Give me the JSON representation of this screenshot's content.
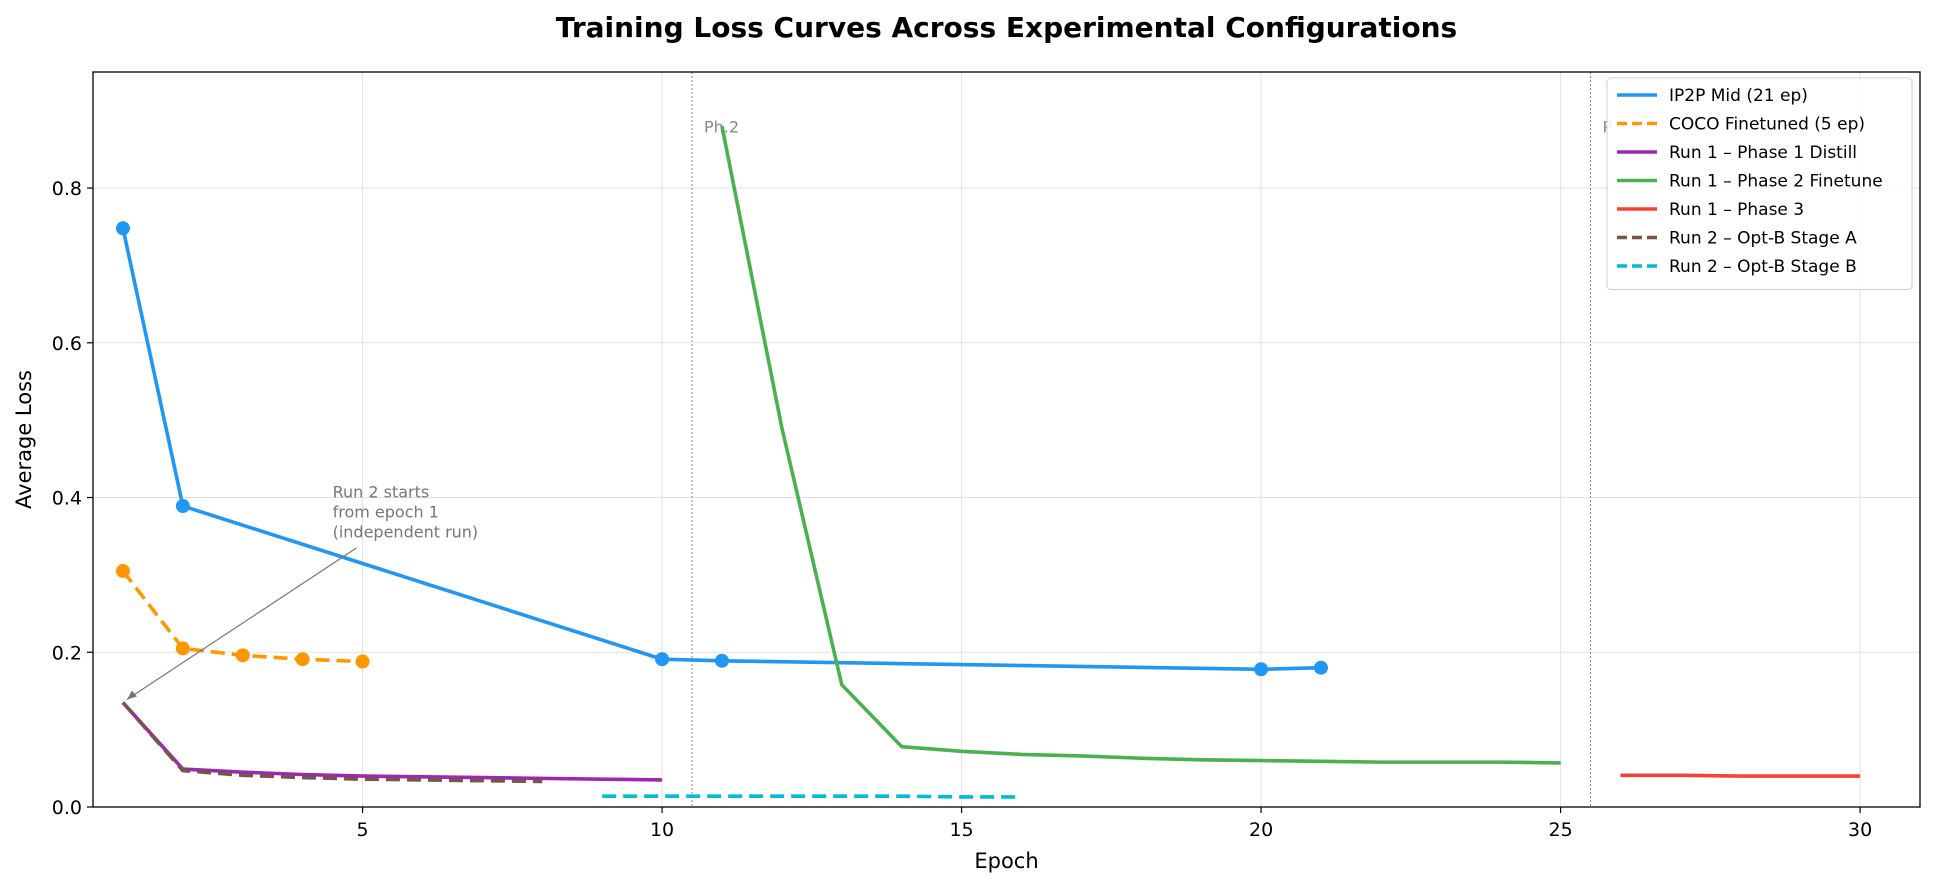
{
  "chart_data": {
    "type": "line",
    "title": "Training Loss Curves Across Experimental Configurations",
    "xlabel": "Epoch",
    "ylabel": "Average Loss",
    "xlim": [
      0.5,
      31
    ],
    "ylim": [
      0,
      0.95
    ],
    "xticks": [
      5,
      10,
      15,
      20,
      25,
      30
    ],
    "yticks": [
      0.0,
      0.2,
      0.4,
      0.6,
      0.8
    ],
    "xtick_labels": [
      "5",
      "10",
      "15",
      "20",
      "25",
      "30"
    ],
    "ytick_labels": [
      "0.0",
      "0.2",
      "0.4",
      "0.6",
      "0.8"
    ],
    "grid": true,
    "legend_position": "top-right",
    "series": [
      {
        "name": "IP2P Mid (21 ep)",
        "color": "#2196F3",
        "dash": "solid",
        "markers": true,
        "x": [
          1,
          2,
          10,
          11,
          20,
          21
        ],
        "y": [
          0.748,
          0.389,
          0.191,
          0.189,
          0.178,
          0.18
        ]
      },
      {
        "name": "COCO Finetuned (5 ep)",
        "color": "#FF9800",
        "dash": "dashed",
        "markers": true,
        "x": [
          1,
          2,
          3,
          4,
          5
        ],
        "y": [
          0.305,
          0.205,
          0.196,
          0.191,
          0.188
        ]
      },
      {
        "name": "Run 1 – Phase 1 Distill",
        "color": "#9C27B0",
        "dash": "solid",
        "markers": false,
        "x": [
          1,
          2,
          3,
          4,
          5,
          6,
          7,
          8,
          9,
          10
        ],
        "y": [
          0.135,
          0.049,
          0.045,
          0.042,
          0.04,
          0.039,
          0.038,
          0.037,
          0.036,
          0.035
        ]
      },
      {
        "name": "Run 1 – Phase 2 Finetune",
        "color": "#4CAF50",
        "dash": "solid",
        "markers": false,
        "x": [
          11,
          12,
          13,
          14,
          15,
          16,
          17,
          18,
          19,
          20,
          21,
          22,
          23,
          24,
          25
        ],
        "y": [
          0.88,
          0.49,
          0.158,
          0.078,
          0.072,
          0.068,
          0.066,
          0.063,
          0.061,
          0.06,
          0.059,
          0.058,
          0.058,
          0.058,
          0.057
        ]
      },
      {
        "name": "Run 1 – Phase 3",
        "color": "#F44336",
        "dash": "solid",
        "markers": false,
        "x": [
          26,
          27,
          28,
          29,
          30
        ],
        "y": [
          0.041,
          0.041,
          0.04,
          0.04,
          0.04
        ]
      },
      {
        "name": "Run 2 – Opt-B Stage A",
        "color": "#795548",
        "dash": "dashed",
        "markers": false,
        "x": [
          1,
          2,
          3,
          4,
          5,
          6,
          7,
          8
        ],
        "y": [
          0.135,
          0.047,
          0.041,
          0.038,
          0.036,
          0.035,
          0.034,
          0.033
        ]
      },
      {
        "name": "Run 2 – Opt-B Stage B",
        "color": "#00BCD4",
        "dash": "dashed",
        "markers": false,
        "x": [
          9,
          10,
          11,
          12,
          13,
          14,
          15,
          16
        ],
        "y": [
          0.014,
          0.014,
          0.014,
          0.014,
          0.014,
          0.014,
          0.013,
          0.013
        ]
      }
    ],
    "phase_lines": [
      {
        "x": 10.5,
        "label": "Ph.2"
      },
      {
        "x": 25.5,
        "label": "P"
      }
    ],
    "annotation": {
      "lines": [
        "Run 2 starts",
        "from epoch 1",
        "(independent run)"
      ],
      "text_at": [
        4.5,
        0.4
      ],
      "arrow_to": [
        1,
        0.135
      ]
    }
  }
}
